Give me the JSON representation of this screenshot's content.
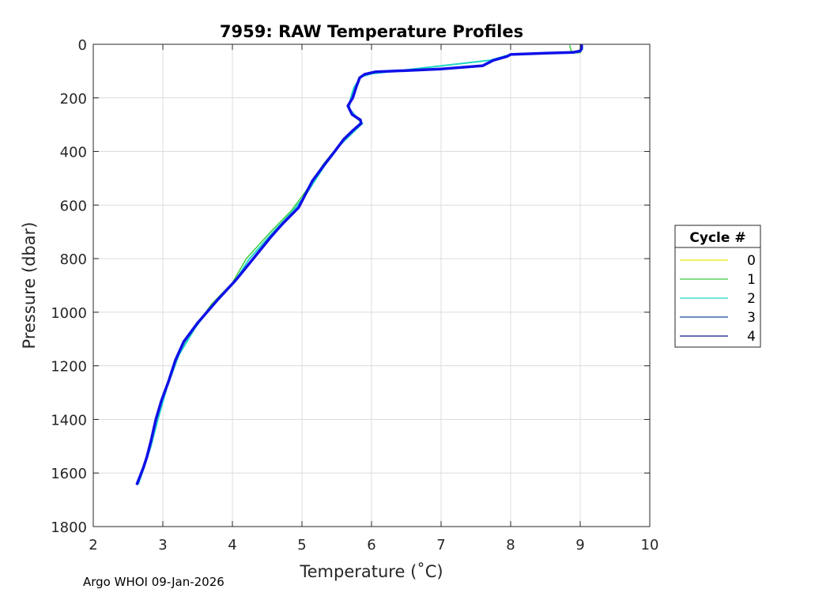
{
  "chart_data": {
    "type": "line",
    "title": "7959: RAW Temperature Profiles",
    "xlabel": "Temperature (˚C)",
    "ylabel": "Pressure (dbar)",
    "xlim": [
      2,
      10
    ],
    "ylim": [
      0,
      1800
    ],
    "y_reversed": true,
    "xticks": [
      "2",
      "3",
      "4",
      "5",
      "6",
      "7",
      "8",
      "9",
      "10"
    ],
    "yticks": [
      "0",
      "200",
      "400",
      "600",
      "800",
      "1000",
      "1200",
      "1400",
      "1600",
      "1800"
    ],
    "grid": true,
    "legend": {
      "title": "Cycle #",
      "placement": "right",
      "entries": [
        {
          "label": "0",
          "color": "#e6e60a"
        },
        {
          "label": "1",
          "color": "#3ccc3c"
        },
        {
          "label": "2",
          "color": "#20d6c8"
        },
        {
          "label": "3",
          "color": "#1a4a9c"
        },
        {
          "label": "4",
          "color": "#14148c"
        }
      ]
    },
    "series": [
      {
        "name": "1",
        "color": "#3ccc3c",
        "width": 1.5,
        "points": [
          [
            8.85,
            5
          ],
          [
            8.86,
            15
          ],
          [
            8.87,
            25
          ],
          [
            8.95,
            30
          ],
          [
            9.0,
            32
          ],
          [
            8.0,
            38
          ],
          [
            7.7,
            60
          ],
          [
            6.0,
            110
          ],
          [
            5.85,
            120
          ],
          [
            5.75,
            160
          ],
          [
            5.7,
            200
          ],
          [
            5.68,
            240
          ],
          [
            5.75,
            270
          ],
          [
            5.85,
            290
          ],
          [
            5.75,
            320
          ],
          [
            5.55,
            370
          ],
          [
            5.3,
            450
          ],
          [
            5.05,
            550
          ],
          [
            4.85,
            620
          ],
          [
            4.55,
            700
          ],
          [
            4.2,
            800
          ],
          [
            4.0,
            890
          ],
          [
            3.7,
            970
          ],
          [
            3.45,
            1060
          ],
          [
            3.22,
            1160
          ],
          [
            3.05,
            1280
          ],
          [
            2.92,
            1400
          ],
          [
            2.82,
            1500
          ],
          [
            2.72,
            1580
          ],
          [
            2.65,
            1640
          ]
        ]
      },
      {
        "name": "2",
        "color": "#20d6c8",
        "width": 2,
        "points": [
          [
            9.03,
            5
          ],
          [
            9.03,
            20
          ],
          [
            8.95,
            30
          ],
          [
            8.0,
            38
          ],
          [
            7.7,
            60
          ],
          [
            6.0,
            110
          ],
          [
            5.85,
            122
          ],
          [
            5.75,
            160
          ],
          [
            5.7,
            200
          ],
          [
            5.68,
            240
          ],
          [
            5.78,
            270
          ],
          [
            5.87,
            295
          ],
          [
            5.75,
            325
          ],
          [
            5.55,
            375
          ],
          [
            5.32,
            455
          ],
          [
            5.07,
            555
          ],
          [
            4.87,
            622
          ],
          [
            4.58,
            702
          ],
          [
            4.24,
            802
          ],
          [
            4.02,
            890
          ],
          [
            3.72,
            970
          ],
          [
            3.46,
            1060
          ],
          [
            3.23,
            1160
          ],
          [
            3.06,
            1280
          ],
          [
            2.93,
            1400
          ],
          [
            2.83,
            1500
          ],
          [
            2.73,
            1580
          ],
          [
            2.65,
            1640
          ]
        ]
      },
      {
        "name": "4",
        "color": "#1010e8",
        "width": 3.5,
        "points": [
          [
            9.02,
            5
          ],
          [
            9.02,
            15
          ],
          [
            9.0,
            25
          ],
          [
            8.9,
            30
          ],
          [
            8.5,
            33
          ],
          [
            8.0,
            38
          ],
          [
            7.95,
            45
          ],
          [
            7.75,
            60
          ],
          [
            7.6,
            80
          ],
          [
            7.0,
            92
          ],
          [
            6.5,
            98
          ],
          [
            6.05,
            103
          ],
          [
            5.9,
            112
          ],
          [
            5.83,
            125
          ],
          [
            5.78,
            160
          ],
          [
            5.73,
            200
          ],
          [
            5.66,
            230
          ],
          [
            5.72,
            262
          ],
          [
            5.84,
            282
          ],
          [
            5.85,
            295
          ],
          [
            5.74,
            320
          ],
          [
            5.6,
            355
          ],
          [
            5.47,
            400
          ],
          [
            5.32,
            450
          ],
          [
            5.15,
            510
          ],
          [
            5.05,
            560
          ],
          [
            4.95,
            610
          ],
          [
            4.72,
            670
          ],
          [
            4.55,
            720
          ],
          [
            4.3,
            800
          ],
          [
            4.05,
            880
          ],
          [
            3.8,
            950
          ],
          [
            3.5,
            1040
          ],
          [
            3.3,
            1110
          ],
          [
            3.18,
            1180
          ],
          [
            3.08,
            1260
          ],
          [
            2.98,
            1330
          ],
          [
            2.9,
            1400
          ],
          [
            2.83,
            1480
          ],
          [
            2.77,
            1540
          ],
          [
            2.72,
            1580
          ],
          [
            2.66,
            1620
          ],
          [
            2.63,
            1640
          ]
        ]
      }
    ]
  },
  "footer": "Argo WHOI 09-Jan-2026"
}
